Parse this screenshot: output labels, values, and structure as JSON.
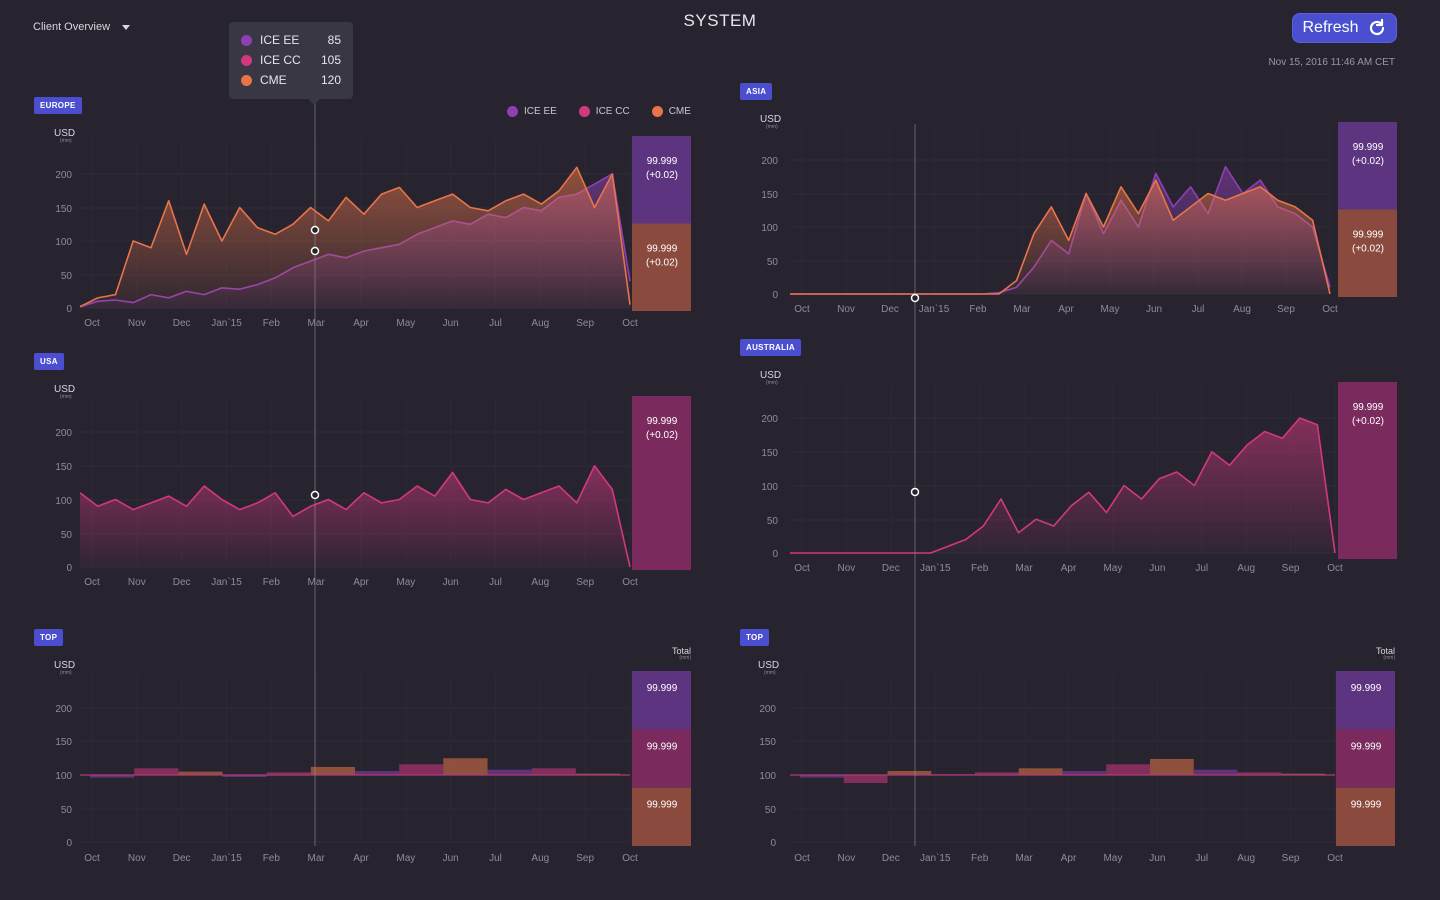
{
  "header": {
    "client_label": "Client Overview",
    "title": "SYSTEM",
    "refresh_label": "Refresh",
    "datetime": "Nov 15, 2016 11:46 AM CET"
  },
  "colors": {
    "ice_ee": "#8e3fb4",
    "ice_cc": "#d2387f",
    "cme": "#e8744a",
    "accent": "#4b4fcf",
    "background": "#27242f"
  },
  "legend": [
    {
      "name": "ICE EE",
      "color": "#8e3fb4"
    },
    {
      "name": "ICE CC",
      "color": "#d2387f"
    },
    {
      "name": "CME",
      "color": "#e8744a"
    }
  ],
  "tooltip": [
    {
      "name": "ICE EE",
      "value": "85",
      "color": "#8e3fb4"
    },
    {
      "name": "ICE CC",
      "value": "105",
      "color": "#d2387f"
    },
    {
      "name": "CME",
      "value": "120",
      "color": "#e8744a"
    }
  ],
  "axis": {
    "unit": "USD",
    "sub_unit": "(mm)",
    "total_label": "Total",
    "months": [
      "Oct",
      "Nov",
      "Dec",
      "Jan`15",
      "Feb",
      "Mar",
      "Apr",
      "May",
      "Jun",
      "Jul",
      "Aug",
      "Sep",
      "Oct"
    ],
    "y_ticks": [
      "0",
      "50",
      "100",
      "150",
      "200"
    ]
  },
  "chart_data": [
    {
      "panel": "EUROPE",
      "type": "area",
      "ylim": [
        0,
        200
      ],
      "series": [
        {
          "name": "ICE EE",
          "color": "#8e3fb4",
          "values": [
            2,
            10,
            12,
            8,
            20,
            15,
            25,
            20,
            30,
            28,
            35,
            45,
            60,
            70,
            80,
            75,
            85,
            90,
            95,
            110,
            120,
            130,
            125,
            140,
            135,
            150,
            145,
            165,
            170,
            185,
            200,
            40
          ]
        },
        {
          "name": "CME",
          "color": "#e8744a",
          "values": [
            2,
            15,
            20,
            100,
            90,
            160,
            80,
            155,
            100,
            150,
            120,
            110,
            125,
            150,
            130,
            165,
            140,
            170,
            180,
            150,
            160,
            170,
            150,
            145,
            160,
            170,
            155,
            175,
            210,
            150,
            200,
            5
          ]
        }
      ],
      "boxes": [
        {
          "label": "99.999\n(+0.02)",
          "color": "#5c3480"
        },
        {
          "label": "99.999\n(+0.02)",
          "color": "#8a4a3e"
        }
      ]
    },
    {
      "panel": "ASIA",
      "type": "area",
      "ylim": [
        0,
        200
      ],
      "series": [
        {
          "name": "ICE EE",
          "color": "#8e3fb4",
          "values": [
            0,
            0,
            0,
            0,
            0,
            0,
            0,
            0,
            0,
            0,
            0,
            0,
            2,
            10,
            40,
            80,
            60,
            150,
            90,
            140,
            100,
            180,
            130,
            160,
            120,
            190,
            150,
            170,
            130,
            120,
            100,
            10
          ]
        },
        {
          "name": "CME",
          "color": "#e8744a",
          "values": [
            0,
            0,
            0,
            0,
            0,
            0,
            0,
            0,
            0,
            0,
            0,
            0,
            0,
            20,
            90,
            130,
            80,
            150,
            100,
            160,
            120,
            170,
            110,
            130,
            150,
            140,
            150,
            160,
            140,
            130,
            110,
            0
          ]
        }
      ],
      "boxes": [
        {
          "label": "99.999\n(+0.02)",
          "color": "#5c3480"
        },
        {
          "label": "99.999\n(+0.02)",
          "color": "#8a4a3e"
        }
      ]
    },
    {
      "panel": "USA",
      "type": "area",
      "ylim": [
        0,
        200
      ],
      "series": [
        {
          "name": "ICE CC",
          "color": "#d2387f",
          "values": [
            110,
            90,
            100,
            85,
            95,
            105,
            90,
            120,
            100,
            85,
            95,
            110,
            75,
            90,
            100,
            85,
            110,
            95,
            100,
            120,
            105,
            140,
            100,
            95,
            115,
            100,
            110,
            120,
            95,
            150,
            115,
            0
          ]
        }
      ],
      "boxes": [
        {
          "label": "99.999\n(+0.02)",
          "color": "#7b2a5e"
        }
      ]
    },
    {
      "panel": "AUSTRALIA",
      "type": "area",
      "ylim": [
        0,
        200
      ],
      "series": [
        {
          "name": "ICE CC",
          "color": "#d2387f",
          "values": [
            0,
            0,
            0,
            0,
            0,
            0,
            0,
            0,
            0,
            10,
            20,
            40,
            80,
            30,
            50,
            40,
            70,
            90,
            60,
            100,
            80,
            110,
            120,
            100,
            150,
            130,
            160,
            180,
            170,
            200,
            190,
            0
          ]
        }
      ],
      "boxes": [
        {
          "label": "99.999\n(+0.02)",
          "color": "#7b2a5e"
        }
      ]
    },
    {
      "panel": "TOP-LEFT",
      "type": "bar",
      "values": [
        96,
        110,
        105,
        100,
        104,
        112,
        106,
        116,
        125,
        108,
        110,
        102
      ],
      "boxes": [
        {
          "label": "99.999",
          "color": "#5c3480"
        },
        {
          "label": "99.999",
          "color": "#7b2a5e"
        },
        {
          "label": "99.999",
          "color": "#8a4a3e"
        }
      ]
    },
    {
      "panel": "TOP-RIGHT",
      "type": "bar",
      "values": [
        96,
        88,
        106,
        101,
        104,
        110,
        106,
        116,
        124,
        108,
        104,
        102
      ],
      "boxes": [
        {
          "label": "99.999",
          "color": "#5c3480"
        },
        {
          "label": "99.999",
          "color": "#7b2a5e"
        },
        {
          "label": "99.999",
          "color": "#8a4a3e"
        }
      ]
    }
  ],
  "panels_labels": {
    "europe": "EUROPE",
    "asia": "ASIA",
    "usa": "USA",
    "australia": "AUSTRALIA",
    "top_left": "TOP",
    "top_right": "TOP"
  }
}
